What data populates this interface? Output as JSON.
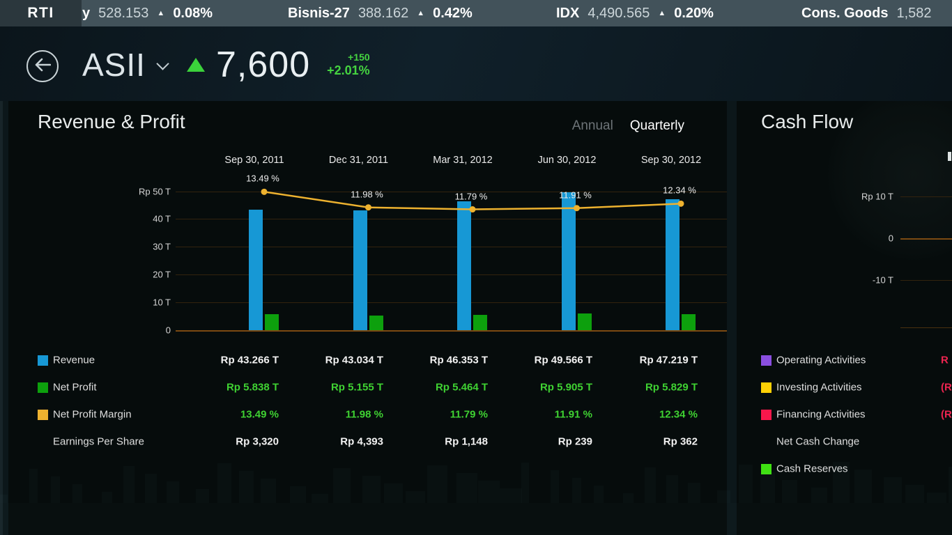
{
  "ticker": {
    "brand": "RTI",
    "up_arrow": "▲",
    "items": [
      {
        "name": "y",
        "value": "528.153",
        "direction": "up",
        "change_percent": "0.08%"
      },
      {
        "name": "Bisnis-27",
        "value": "388.162",
        "direction": "up",
        "change_percent": "0.42%"
      },
      {
        "name": "IDX",
        "value": "4,490.565",
        "direction": "up",
        "change_percent": "0.20%"
      },
      {
        "name": "Cons. Goods",
        "value": "1,582",
        "direction": "",
        "change_percent": ""
      }
    ]
  },
  "header": {
    "symbol": "ASII",
    "direction": "up",
    "price": "7,600",
    "change_points": "+150",
    "change_percent": "+2.01%"
  },
  "revenue_profit_panel": {
    "title": "Revenue & Profit",
    "tabs": [
      {
        "label": "Annual",
        "active": false
      },
      {
        "label": "Quarterly",
        "active": true
      }
    ],
    "chart_data": {
      "type": "bar",
      "subtype": "bar+line combo",
      "categories": [
        "Sep 30, 2011",
        "Dec 31, 2011",
        "Mar 31, 2012",
        "Jun 30, 2012",
        "Sep 30, 2012"
      ],
      "series": [
        {
          "name": "Revenue",
          "type": "bar",
          "color": "#1798d5",
          "unit": "Rp T",
          "values": [
            43.266,
            43.034,
            46.353,
            49.566,
            47.219
          ]
        },
        {
          "name": "Net Profit",
          "type": "bar",
          "color": "#0da00d",
          "unit": "Rp T",
          "values": [
            5.838,
            5.155,
            5.464,
            5.905,
            5.829
          ]
        },
        {
          "name": "Net Profit Margin",
          "type": "line",
          "color": "#eeb22f",
          "unit": "%",
          "values": [
            13.49,
            11.98,
            11.79,
            11.91,
            12.34
          ],
          "point_labels": [
            "13.49 %",
            "11.98 %",
            "11.79 %",
            "11.91 %",
            "12.34 %"
          ]
        }
      ],
      "y_ticks": [
        {
          "label": "Rp 50 T",
          "value": 50
        },
        {
          "label": "40 T",
          "value": 40
        },
        {
          "label": "30 T",
          "value": 30
        },
        {
          "label": "20 T",
          "value": 20
        },
        {
          "label": "10 T",
          "value": 10
        },
        {
          "label": "0",
          "value": 0
        }
      ],
      "ylim": [
        0,
        52
      ],
      "grid": "horizontal",
      "legend_position": "bottom-left (table rows)"
    },
    "table": {
      "rows": [
        {
          "label": "Revenue",
          "swatch": "#1798d5",
          "value_style": "white",
          "values": [
            "Rp 43.266 T",
            "Rp 43.034 T",
            "Rp 46.353 T",
            "Rp 49.566 T",
            "Rp 47.219 T"
          ]
        },
        {
          "label": "Net Profit",
          "swatch": "#0da00d",
          "value_style": "green",
          "values": [
            "Rp 5.838 T",
            "Rp 5.155 T",
            "Rp 5.464 T",
            "Rp 5.905 T",
            "Rp 5.829 T"
          ]
        },
        {
          "label": "Net Profit Margin",
          "swatch": "#eeb22f",
          "value_style": "green",
          "values": [
            "13.49 %",
            "11.98 %",
            "11.79 %",
            "11.91 %",
            "12.34 %"
          ]
        },
        {
          "label": "Earnings Per Share",
          "swatch": null,
          "value_style": "white",
          "values": [
            "Rp 3,320",
            "Rp 4,393",
            "Rp 1,148",
            "Rp 239",
            "Rp 362"
          ]
        }
      ]
    }
  },
  "cash_flow_panel": {
    "title": "Cash Flow",
    "chart_data": {
      "type": "bar",
      "note": "chart clipped at right screen edge; only y-axis visible",
      "y_ticks": [
        {
          "label": "Rp 10 T",
          "value": 10
        },
        {
          "label": "0",
          "value": 0
        },
        {
          "label": "-10 T",
          "value": -10
        }
      ]
    },
    "legend": [
      {
        "label": "Operating Activities",
        "swatch": "#8a4fe0",
        "value_fragment": "R"
      },
      {
        "label": "Investing Activities",
        "swatch": "#ffd105",
        "value_fragment": "(R"
      },
      {
        "label": "Financing Activities",
        "swatch": "#f8174b",
        "value_fragment": "(R"
      },
      {
        "label": "Net Cash Change",
        "swatch": null,
        "value_fragment": ""
      },
      {
        "label": "Cash Reserves",
        "swatch": "#3fe112",
        "value_fragment": ""
      }
    ]
  }
}
